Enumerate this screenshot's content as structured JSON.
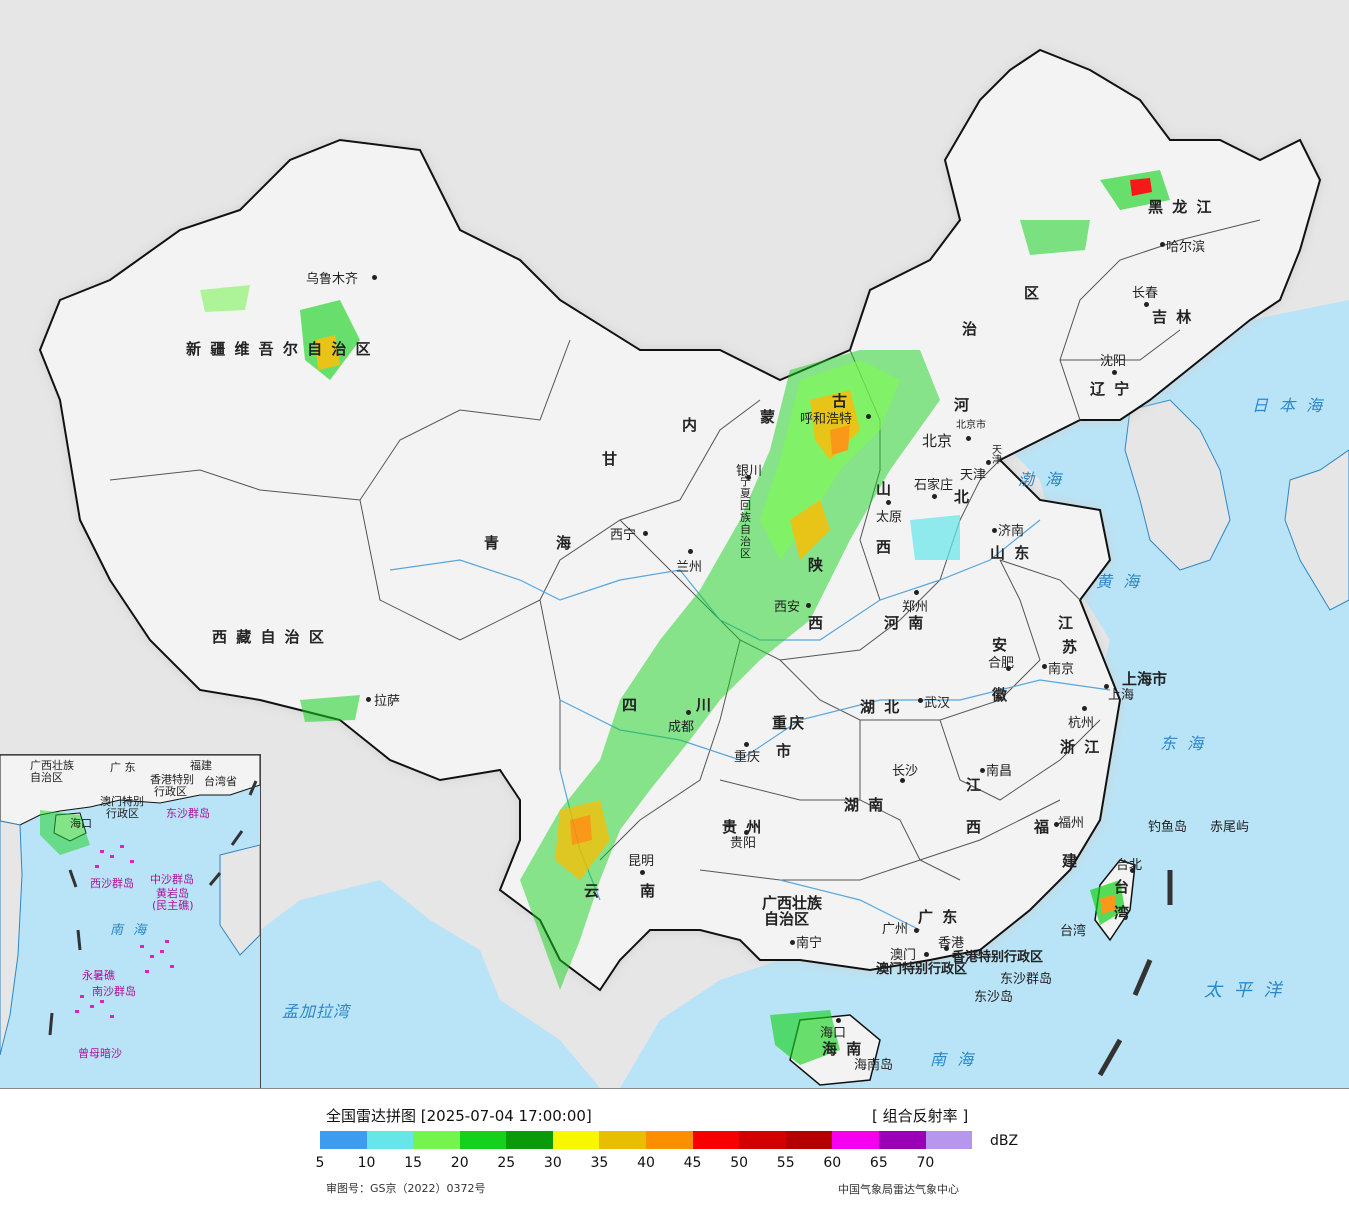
{
  "legend": {
    "title": "全国雷达拼图 [2025-07-04 17:00:00]",
    "product": "[ 组合反射率 ]",
    "unit": "dBZ",
    "colors": [
      "#3d9cef",
      "#67e6ea",
      "#73f54d",
      "#16d11c",
      "#0a9a0a",
      "#f7f700",
      "#e7bf00",
      "#fb8f00",
      "#f80000",
      "#d30000",
      "#b50000",
      "#f600f0",
      "#9a00b6",
      "#b797ee"
    ],
    "ticks": [
      "5",
      "10",
      "15",
      "20",
      "25",
      "30",
      "35",
      "40",
      "45",
      "50",
      "55",
      "60",
      "65",
      "70"
    ],
    "review_no": "审图号：GS京（2022）0372号",
    "producer": "中国气象局雷达气象中心"
  },
  "provinces": {
    "xinjiang": "新 疆 维 吾 尔 自 治 区",
    "xizang": "西 藏 自 治 区",
    "qinghai_1": "青",
    "qinghai_2": "海",
    "gansu": "甘",
    "neimenggu_1": "内",
    "neimenggu_2": "蒙",
    "neimenggu_3": "古",
    "neimenggu_4": "治",
    "neimenggu_5": "区",
    "heilongjiang": "黑  龙  江",
    "jilin": "吉  林",
    "liaoning": "辽  宁",
    "hebei_1": "河",
    "hebei_2": "北",
    "shanxi_1": "山",
    "shanxi_2": "西",
    "shaanxi_1": "陕",
    "shaanxi_2": "西",
    "shandong": "山  东",
    "henan": "河  南",
    "jiangsu_1": "江",
    "jiangsu_2": "苏",
    "anhui_1": "安",
    "anhui_2": "徽",
    "hubei": "湖  北",
    "zhejiang": "浙  江",
    "sichuan_1": "四",
    "sichuan_2": "川",
    "chongqing_1": "重庆",
    "chongqing_2": "市",
    "guizhou": "贵  州",
    "hunan": "湖  南",
    "jiangxi_1": "江",
    "jiangxi_2": "西",
    "fujian_1": "福",
    "fujian_2": "建",
    "yunnan_1": "云",
    "yunnan_2": "南",
    "guangxi_1": "广西壮族",
    "guangxi_2": "自治区",
    "guangdong": "广  东",
    "hainan": "海  南",
    "taiwan_1": "台",
    "taiwan_2": "湾",
    "ningxia": "宁夏回族自治区",
    "shanghai": "上海市",
    "hongkong_sar": "香港特别行政区",
    "macao_sar": "澳门特别行政区"
  },
  "seas": {
    "japan_sea": "日 本 海",
    "bohai": "渤 海",
    "yellow_sea": "黄 海",
    "east_sea": "东 海",
    "south_sea": "南 海",
    "pacific": "太 平 洋",
    "bengal": "孟加拉湾"
  },
  "cities": {
    "urumqi": "乌鲁木齐",
    "lhasa": "拉萨",
    "xining": "西宁",
    "lanzhou": "兰州",
    "yinchuan": "银川",
    "hohhot": "呼和浩特",
    "beijing": "北京",
    "beijing_tiny": "北京市",
    "tianjin": "天津",
    "tianjin_tiny": "天津",
    "shijiazhuang": "石家庄",
    "taiyuan": "太原",
    "jinan": "济南",
    "zhengzhou": "郑州",
    "xian": "西安",
    "chengdu": "成都",
    "chongqing": "重庆",
    "wuhan": "武汉",
    "hefei": "合肥",
    "nanjing": "南京",
    "shanghai_city": "上海",
    "hangzhou": "杭州",
    "changsha": "长沙",
    "nanchang": "南昌",
    "fuzhou": "福州",
    "guiyang": "贵阳",
    "kunming": "昆明",
    "nanning": "南宁",
    "guangzhou": "广州",
    "macao": "澳门",
    "hongkong": "香港",
    "haikou": "海口",
    "hainan_dao": "海南岛",
    "taipei": "台北",
    "taiwan_dao": "台湾",
    "harbin": "哈尔滨",
    "changchun": "长春",
    "shenyang": "沈阳",
    "diaoyu": "钓鱼岛",
    "chiwei": "赤尾屿",
    "dongsha_qundao": "东沙群岛",
    "dongsha_dao": "东沙岛"
  },
  "inset": {
    "guangxi": "广西壮族",
    "guangxi_2": "自治区",
    "guangdong": "广  东",
    "fujian": "福建",
    "hk": "香港特别",
    "hk_2": "行政区",
    "macao": "澳门特别",
    "macao_2": "行政区",
    "taiwan": "台湾省",
    "dongsha": "东沙群岛",
    "hainan": "海口",
    "xisha": "西沙群岛",
    "zhongsha": "中沙群岛",
    "huangyan": "黄岩岛",
    "huangyan_2": "(民主礁)",
    "south_sea": "南  海",
    "yongshu": "永暑礁",
    "nansha": "南沙群岛",
    "zengmu": "曾母暗沙"
  }
}
